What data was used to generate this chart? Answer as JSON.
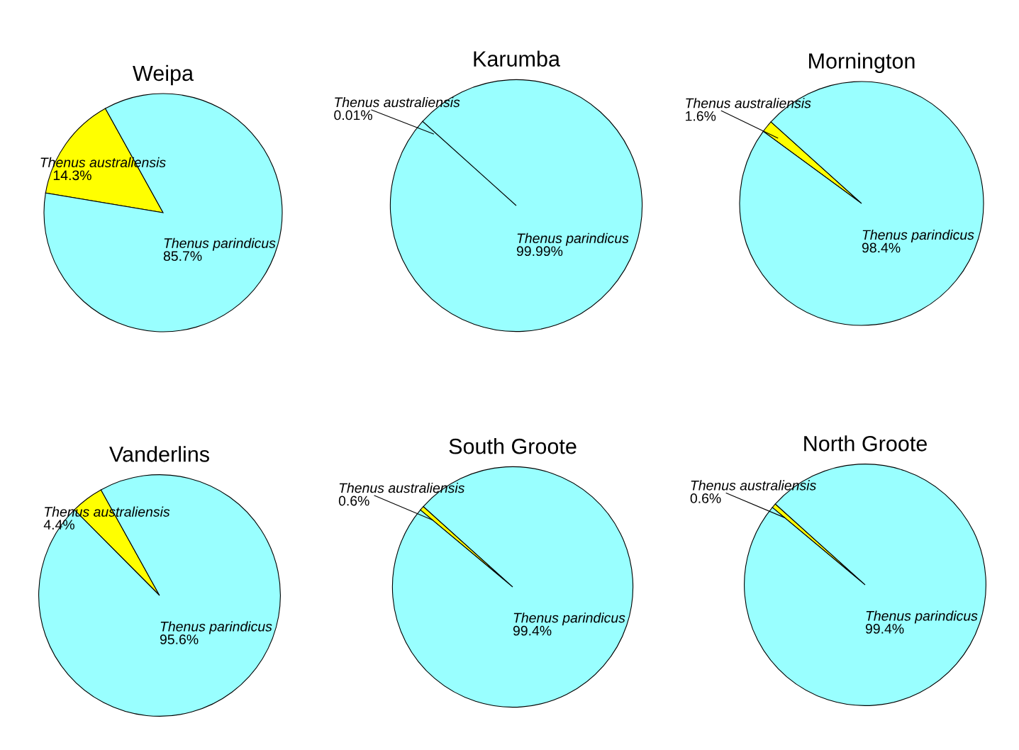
{
  "chart_data": [
    {
      "type": "pie",
      "title": "Weipa",
      "categories": [
        "Thenus australiensis",
        "Thenus parindicus"
      ],
      "values": [
        14.3,
        85.7
      ],
      "colors": [
        "#ffff00",
        "#99ffff"
      ],
      "value_labels": [
        "14.3%",
        "85.7%"
      ]
    },
    {
      "type": "pie",
      "title": "Karumba",
      "categories": [
        "Thenus australiensis",
        "Thenus parindicus"
      ],
      "values": [
        0.01,
        99.99
      ],
      "colors": [
        "#ffff00",
        "#99ffff"
      ],
      "value_labels": [
        "0.01%",
        "99.99%"
      ]
    },
    {
      "type": "pie",
      "title": "Mornington",
      "categories": [
        "Thenus australiensis",
        "Thenus parindicus"
      ],
      "values": [
        1.6,
        98.4
      ],
      "colors": [
        "#ffff00",
        "#99ffff"
      ],
      "value_labels": [
        "1.6%",
        "98.4%"
      ]
    },
    {
      "type": "pie",
      "title": "Vanderlins",
      "categories": [
        "Thenus australiensis",
        "Thenus parindicus"
      ],
      "values": [
        4.4,
        95.6
      ],
      "colors": [
        "#ffff00",
        "#99ffff"
      ],
      "value_labels": [
        "4.4%",
        "95.6%"
      ]
    },
    {
      "type": "pie",
      "title": "South Groote",
      "categories": [
        "Thenus australiensis",
        "Thenus parindicus"
      ],
      "values": [
        0.6,
        99.4
      ],
      "colors": [
        "#ffff00",
        "#99ffff"
      ],
      "value_labels": [
        "0.6%",
        "99.4%"
      ]
    },
    {
      "type": "pie",
      "title": "North Groote",
      "categories": [
        "Thenus australiensis",
        "Thenus parindicus"
      ],
      "values": [
        0.6,
        99.4
      ],
      "colors": [
        "#ffff00",
        "#99ffff"
      ],
      "value_labels": [
        "0.6%",
        "99.4%"
      ]
    }
  ]
}
